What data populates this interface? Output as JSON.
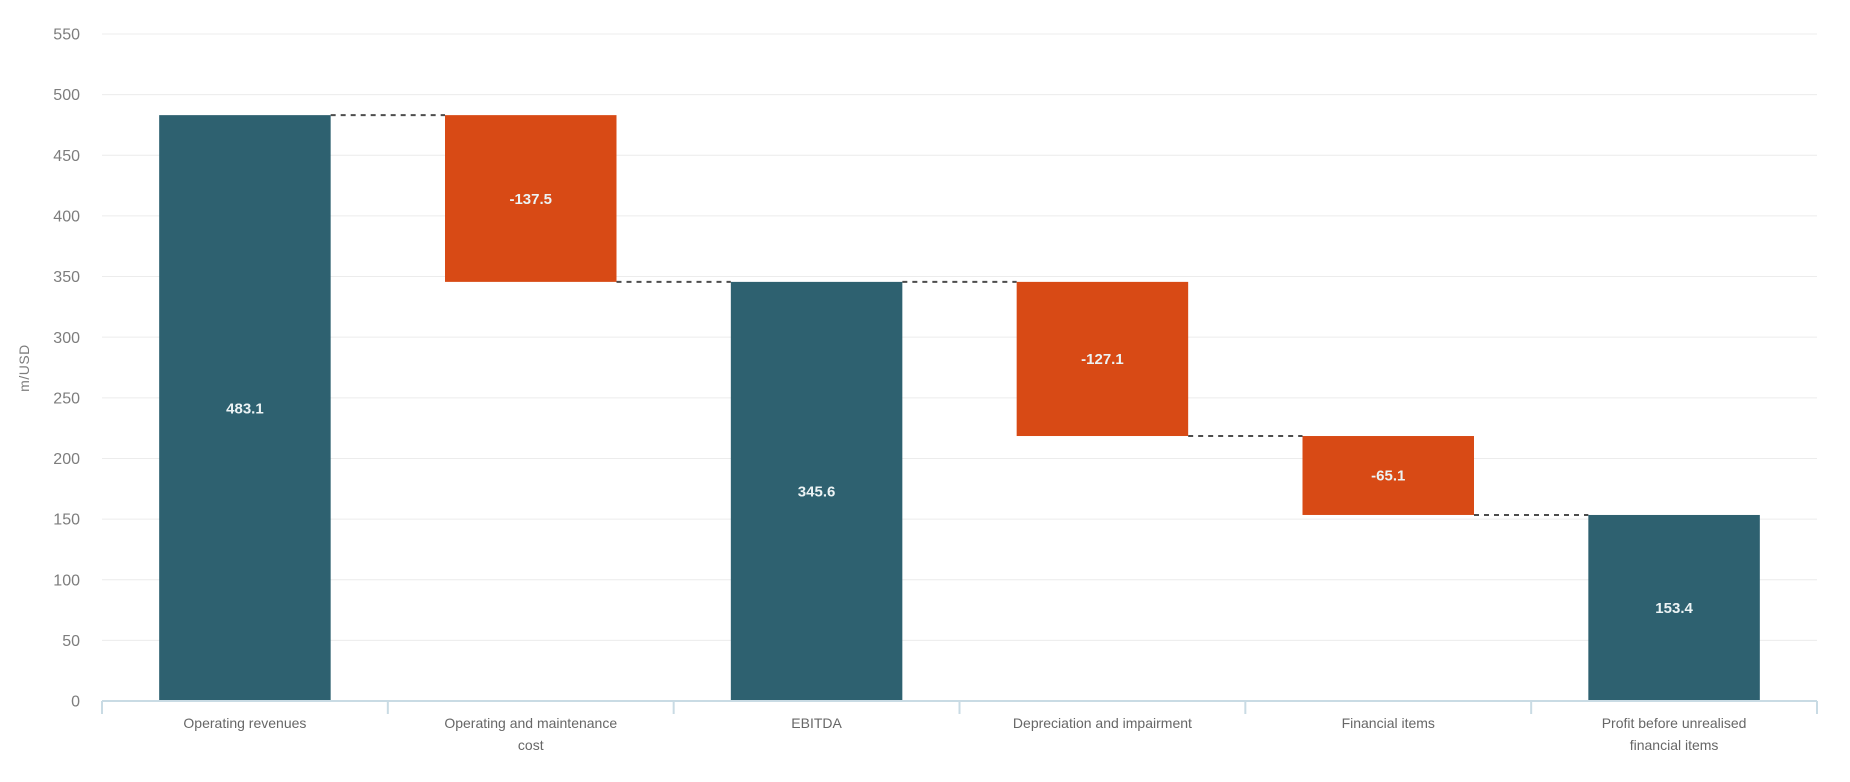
{
  "chart_data": {
    "type": "bar",
    "variant": "waterfall",
    "title": "",
    "xlabel": "",
    "ylabel": "m/USD",
    "ylim": [
      0,
      550
    ],
    "ytick_step": 50,
    "yticks": [
      0,
      50,
      100,
      150,
      200,
      250,
      300,
      350,
      400,
      450,
      500,
      550
    ],
    "grid": "horizontal",
    "legend": "none",
    "categories": [
      "Operating revenues",
      "Operating and maintenance cost",
      "EBITDA",
      "Depreciation and impairment",
      "Financial items",
      "Profit before unrealised financial items"
    ],
    "category_lines": [
      [
        "Operating revenues"
      ],
      [
        "Operating and maintenance",
        "cost"
      ],
      [
        "EBITDA"
      ],
      [
        "Depreciation and impairment"
      ],
      [
        "Financial items"
      ],
      [
        "Profit before unrealised",
        "financial items"
      ]
    ],
    "values": [
      483.1,
      -137.5,
      345.6,
      -127.1,
      -65.1,
      153.4
    ],
    "value_labels": [
      "483.1",
      "-137.5",
      "345.6",
      "-127.1",
      "-65.1",
      "153.4"
    ],
    "bar_roles": [
      "total",
      "decrease",
      "total",
      "decrease",
      "decrease",
      "total"
    ],
    "cumulative_levels": [
      483.1,
      345.6,
      345.6,
      218.5,
      153.4,
      153.4
    ],
    "connector_style": "dashed",
    "colors": {
      "total_bar": "#2e6170",
      "decrease_bar": "#d84a15",
      "value_label": "#ecf3f4",
      "connector": "#4d4d4d",
      "gridline": "#ececec",
      "axis_line": "#c9dbe4",
      "axis_tick": "#c9dbe4",
      "y_tick_text": "#7d7d7d",
      "category_text": "#676767",
      "background": "#ffffff"
    }
  }
}
